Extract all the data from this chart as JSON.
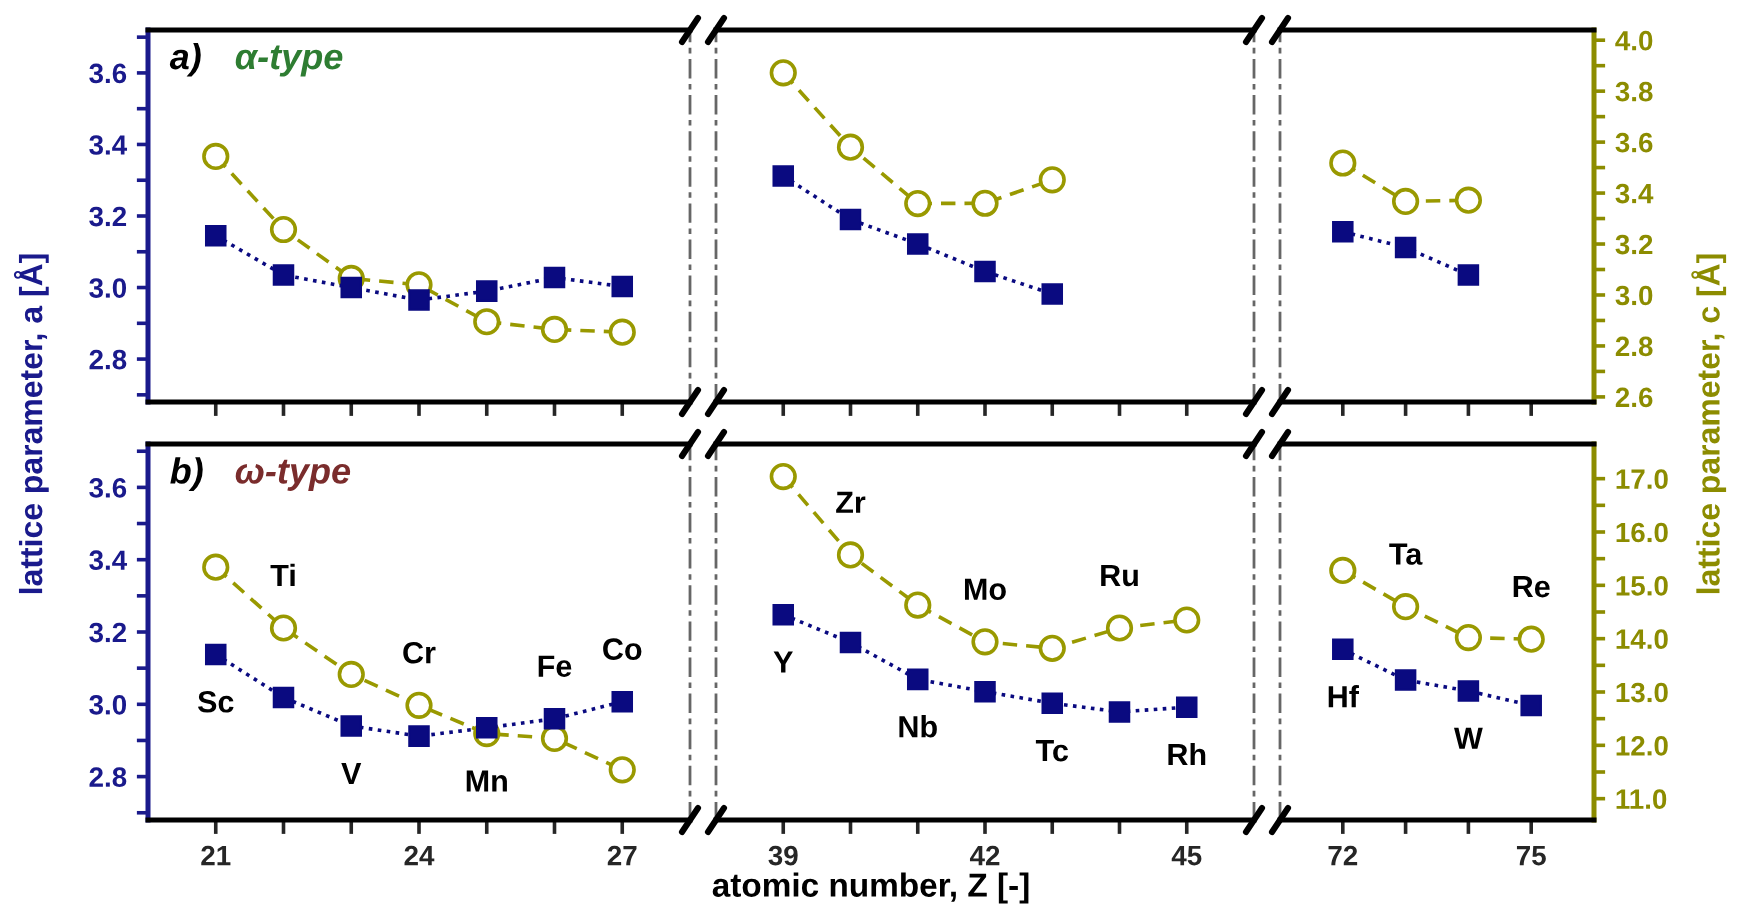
{
  "chart_data": [
    {
      "type": "line",
      "title": "a)",
      "subtitle": "α-type",
      "ylabel": "lattice parameter, a [Å]",
      "x": [
        21,
        22,
        23,
        24,
        25,
        26,
        27
      ],
      "series": [
        {
          "color": "#0a0a80",
          "marker": "square",
          "line_style": "dotted",
          "values": [
            3.145,
            3.035,
            3.0,
            2.965,
            2.99,
            3.028,
            3.003
          ]
        },
        {
          "color": "#999900",
          "marker": "circle",
          "line_style": "dashed",
          "axis": "y2",
          "values": [
            3.544,
            3.257,
            3.065,
            3.04,
            2.895,
            2.865,
            2.854
          ]
        }
      ],
      "xlim": [
        20,
        28
      ],
      "xticks": [
        {
          "value": 21,
          "label": null
        },
        {
          "value": 22,
          "label": null
        },
        {
          "value": 23,
          "label": null
        },
        {
          "value": 24,
          "label": null
        },
        {
          "value": 25,
          "label": null
        },
        {
          "value": 26,
          "label": null
        },
        {
          "value": 27,
          "label": null
        }
      ],
      "ylim": [
        2.68,
        3.72
      ],
      "yticks": [
        {
          "value": 2.7,
          "label": null
        },
        {
          "value": 2.8,
          "label": "2.8"
        },
        {
          "value": 2.9,
          "label": null
        },
        {
          "value": 3.0,
          "label": "3.0"
        },
        {
          "value": 3.1,
          "label": null
        },
        {
          "value": 3.2,
          "label": "3.2"
        },
        {
          "value": 3.3,
          "label": null
        },
        {
          "value": 3.4,
          "label": "3.4"
        },
        {
          "value": 3.5,
          "label": null
        },
        {
          "value": 3.6,
          "label": "3.6"
        },
        {
          "value": 3.7,
          "label": null
        }
      ],
      "y2lim": [
        2.58,
        4.04
      ],
      "tick_labels": "y"
    },
    {
      "type": "line",
      "x": [
        39,
        40,
        41,
        42,
        43
      ],
      "series": [
        {
          "color": "#0a0a80",
          "marker": "square",
          "line_style": "dotted",
          "values": [
            3.312,
            3.19,
            3.122,
            3.045,
            2.982
          ]
        },
        {
          "color": "#999900",
          "marker": "circle",
          "line_style": "dashed",
          "axis": "y2",
          "values": [
            3.872,
            3.58,
            3.359,
            3.36,
            3.452
          ]
        }
      ],
      "xlim": [
        38,
        46
      ],
      "xticks": [
        {
          "value": 39,
          "label": null
        },
        {
          "value": 40,
          "label": null
        },
        {
          "value": 41,
          "label": null
        },
        {
          "value": 42,
          "label": null
        },
        {
          "value": 43,
          "label": null
        },
        {
          "value": 44,
          "label": null
        },
        {
          "value": 45,
          "label": null
        }
      ],
      "ylim": [
        2.68,
        3.72
      ],
      "y2lim": [
        2.58,
        4.04
      ],
      "tick_labels": false
    },
    {
      "type": "line",
      "y2label": "lattice parameter, c [Å]",
      "x": [
        72,
        73,
        74
      ],
      "series": [
        {
          "color": "#0a0a80",
          "marker": "square",
          "line_style": "dotted",
          "values": [
            3.156,
            3.112,
            3.035
          ]
        },
        {
          "color": "#999900",
          "marker": "circle",
          "line_style": "dashed",
          "axis": "y2",
          "values": [
            3.518,
            3.367,
            3.372
          ]
        }
      ],
      "xlim": [
        71,
        76
      ],
      "xticks": [
        {
          "value": 72,
          "label": null
        },
        {
          "value": 73,
          "label": null
        },
        {
          "value": 74,
          "label": null
        },
        {
          "value": 75,
          "label": null
        }
      ],
      "ylim": [
        2.68,
        3.72
      ],
      "y2lim": [
        2.58,
        4.04
      ],
      "y2ticks": [
        {
          "value": 2.6,
          "label": "2.6"
        },
        {
          "value": 2.7,
          "label": null
        },
        {
          "value": 2.8,
          "label": "2.8"
        },
        {
          "value": 2.9,
          "label": null
        },
        {
          "value": 3.0,
          "label": "3.0"
        },
        {
          "value": 3.1,
          "label": null
        },
        {
          "value": 3.2,
          "label": "3.2"
        },
        {
          "value": 3.3,
          "label": null
        },
        {
          "value": 3.4,
          "label": "3.4"
        },
        {
          "value": 3.5,
          "label": null
        },
        {
          "value": 3.6,
          "label": "3.6"
        },
        {
          "value": 3.7,
          "label": null
        },
        {
          "value": 3.8,
          "label": "3.8"
        },
        {
          "value": 3.9,
          "label": null
        },
        {
          "value": 4.0,
          "label": "4.0"
        }
      ],
      "tick_labels": "y"
    },
    {
      "type": "line",
      "title": "b)",
      "subtitle": "ω-type",
      "annotations": [
        "Sc",
        "Ti",
        "V",
        "Cr",
        "Mn",
        "Fe",
        "Co"
      ],
      "x": [
        21,
        22,
        23,
        24,
        25,
        26,
        27
      ],
      "series": [
        {
          "color": "#0a0a80",
          "marker": "square",
          "line_style": "dotted",
          "values": [
            3.138,
            3.019,
            2.94,
            2.912,
            2.935,
            2.96,
            3.007
          ]
        },
        {
          "color": "#999900",
          "marker": "circle",
          "line_style": "dashed",
          "axis": "y2",
          "values": [
            15.34,
            14.2,
            13.33,
            12.75,
            12.22,
            12.13,
            11.54
          ]
        }
      ],
      "xlim": [
        20,
        28
      ],
      "xticks": [
        {
          "value": 21,
          "label": "21"
        },
        {
          "value": 22,
          "label": null
        },
        {
          "value": 23,
          "label": null
        },
        {
          "value": 24,
          "label": "24"
        },
        {
          "value": 25,
          "label": null
        },
        {
          "value": 26,
          "label": null
        },
        {
          "value": 27,
          "label": "27"
        }
      ],
      "ylim": [
        2.68,
        3.72
      ],
      "yticks": [
        {
          "value": 2.7,
          "label": null
        },
        {
          "value": 2.8,
          "label": "2.8"
        },
        {
          "value": 2.9,
          "label": null
        },
        {
          "value": 3.0,
          "label": "3.0"
        },
        {
          "value": 3.1,
          "label": null
        },
        {
          "value": 3.2,
          "label": "3.2"
        },
        {
          "value": 3.3,
          "label": null
        },
        {
          "value": 3.4,
          "label": "3.4"
        },
        {
          "value": 3.5,
          "label": null
        },
        {
          "value": 3.6,
          "label": "3.6"
        },
        {
          "value": 3.7,
          "label": null
        }
      ],
      "y2lim": [
        10.6,
        17.65
      ]
    },
    {
      "type": "line",
      "xlabel": "atomic number, Z [-]",
      "annotations": [
        "Y",
        "Zr",
        "Nb",
        "Mo",
        "Tc",
        "Ru",
        "Rh"
      ],
      "x": [
        39,
        40,
        41,
        42,
        43,
        44,
        45
      ],
      "series": [
        {
          "color": "#0a0a80",
          "marker": "square",
          "line_style": "dotted",
          "values": [
            3.248,
            3.171,
            3.069,
            3.035,
            3.003,
            2.979,
            2.992
          ]
        },
        {
          "color": "#999900",
          "marker": "circle",
          "line_style": "dashed",
          "axis": "y2",
          "values": [
            17.04,
            15.57,
            14.63,
            13.94,
            13.82,
            14.2,
            14.35
          ]
        }
      ],
      "xlim": [
        38,
        46
      ],
      "xticks": [
        {
          "value": 39,
          "label": "39"
        },
        {
          "value": 40,
          "label": null
        },
        {
          "value": 41,
          "label": null
        },
        {
          "value": 42,
          "label": "42"
        },
        {
          "value": 43,
          "label": null
        },
        {
          "value": 44,
          "label": null
        },
        {
          "value": 45,
          "label": "45"
        }
      ],
      "ylim": [
        2.68,
        3.72
      ],
      "y2lim": [
        10.6,
        17.65
      ],
      "tick_labels": "x"
    },
    {
      "type": "line",
      "annotations": [
        "Hf",
        "Ta",
        "W",
        "Re"
      ],
      "x": [
        72,
        73,
        74,
        75
      ],
      "series": [
        {
          "color": "#0a0a80",
          "marker": "square",
          "line_style": "dotted",
          "values": [
            3.152,
            3.067,
            3.037,
            2.997
          ]
        },
        {
          "color": "#999900",
          "marker": "circle",
          "line_style": "dashed",
          "axis": "y2",
          "values": [
            15.28,
            14.6,
            14.02,
            13.99
          ]
        }
      ],
      "xlim": [
        71,
        76
      ],
      "xticks": [
        {
          "value": 72,
          "label": "72"
        },
        {
          "value": 73,
          "label": null
        },
        {
          "value": 74,
          "label": null
        },
        {
          "value": 75,
          "label": "75"
        }
      ],
      "ylim": [
        2.68,
        3.72
      ],
      "y2lim": [
        10.6,
        17.65
      ],
      "y2ticks": [
        {
          "value": 11.0,
          "label": "11.0"
        },
        {
          "value": 11.5,
          "label": null
        },
        {
          "value": 12.0,
          "label": "12.0"
        },
        {
          "value": 12.5,
          "label": null
        },
        {
          "value": 13.0,
          "label": "13.0"
        },
        {
          "value": 13.5,
          "label": null
        },
        {
          "value": 14.0,
          "label": "14.0"
        },
        {
          "value": 14.5,
          "label": null
        },
        {
          "value": 15.0,
          "label": "15.0"
        },
        {
          "value": 15.5,
          "label": null
        },
        {
          "value": 16.0,
          "label": "16.0"
        },
        {
          "value": 16.5,
          "label": null
        },
        {
          "value": 17.0,
          "label": "17.0"
        }
      ]
    }
  ]
}
